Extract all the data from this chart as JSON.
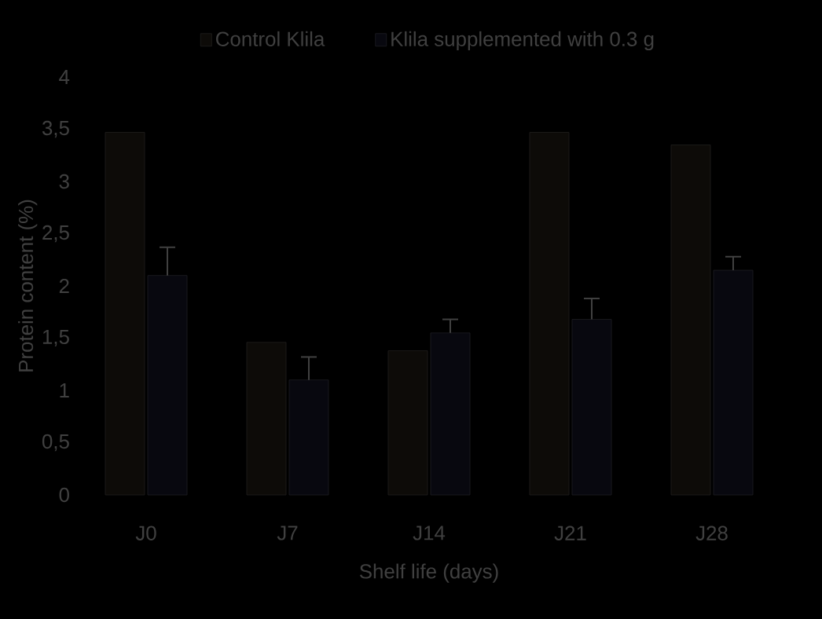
{
  "chart_data": {
    "type": "bar",
    "xlabel": "Shelf life (days)",
    "ylabel": "Protein content (%)",
    "categories": [
      "J0",
      "J7",
      "J14",
      "J21",
      "J28"
    ],
    "series": [
      {
        "name": "Control Klila",
        "color": "#0d0b08",
        "values": [
          3.47,
          1.46,
          1.38,
          3.47,
          3.35
        ]
      },
      {
        "name": "Klila supplemented with 0.3 g",
        "color": "#08080f",
        "values": [
          2.1,
          1.1,
          1.55,
          1.68,
          2.15
        ],
        "errors": [
          0.27,
          0.22,
          0.13,
          0.2,
          0.13
        ]
      }
    ],
    "ylim": [
      0,
      4
    ],
    "yticks": [
      0,
      {
        "value": 0.5,
        "label": "0,5"
      },
      1,
      {
        "value": 1.5,
        "label": "1,5"
      },
      2,
      {
        "value": 2.5,
        "label": "2,5"
      },
      3,
      {
        "value": 3.5,
        "label": "3,5"
      },
      4
    ],
    "grid": false,
    "legend": "top"
  }
}
